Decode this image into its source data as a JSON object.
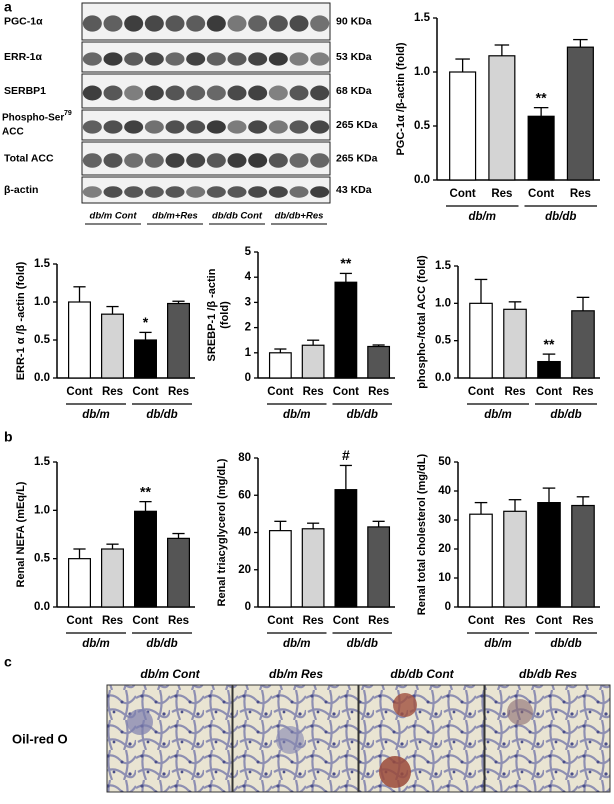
{
  "panels": [
    "a",
    "b",
    "c"
  ],
  "blot": {
    "rows": [
      {
        "label": "PGC-1α",
        "size": "90 KDa"
      },
      {
        "label": "ERR-1α",
        "size": "53 KDa"
      },
      {
        "label": "SERBP1",
        "size": "68 KDa"
      },
      {
        "label": "Phospho-Ser",
        "superscript": "79",
        "label_line2": "ACC",
        "size": "265 KDa"
      },
      {
        "label": "Total ACC",
        "size": "265 KDa"
      },
      {
        "label": "β-actin",
        "size": "43 KDa"
      }
    ],
    "lanes": [
      "db/m Cont",
      "db/m+Res",
      "db/db Cont",
      "db/db+Res"
    ]
  },
  "chart_data": [
    {
      "type": "bar",
      "y_label": "PGC-1α /β-actin (fold)",
      "categories": [
        "Cont",
        "Res",
        "Cont",
        "Res"
      ],
      "groups": [
        "db/m",
        "db/db"
      ],
      "values": [
        1.0,
        1.15,
        0.59,
        1.23
      ],
      "errors": [
        0.12,
        0.1,
        0.08,
        0.07
      ],
      "significance": [
        null,
        null,
        "**",
        null
      ],
      "colors": [
        "#ffffff",
        "#d4d4d4",
        "#000000",
        "#555555"
      ],
      "ylim": [
        0,
        1.5
      ],
      "yticks": [
        {
          "value": 0,
          "label": "0.0"
        },
        0.5,
        {
          "value": 1,
          "label": "1.0"
        },
        1.5
      ]
    },
    {
      "type": "bar",
      "y_label": "ERR-1 α /β -actin (fold)",
      "categories": [
        "Cont",
        "Res",
        "Cont",
        "Res"
      ],
      "groups": [
        "db/m",
        "db/db"
      ],
      "values": [
        1.0,
        0.84,
        0.5,
        0.98
      ],
      "errors": [
        0.2,
        0.1,
        0.1,
        0.03
      ],
      "significance": [
        null,
        null,
        "*",
        null
      ],
      "colors": [
        "#ffffff",
        "#d4d4d4",
        "#000000",
        "#555555"
      ],
      "ylim": [
        0,
        1.5
      ],
      "yticks": [
        {
          "value": 0,
          "label": "0.0"
        },
        0.5,
        {
          "value": 1,
          "label": "1.0"
        },
        1.5
      ]
    },
    {
      "type": "bar",
      "y_label": [
        "SREBP-1 /β -actin",
        "(fold)"
      ],
      "categories": [
        "Cont",
        "Res",
        "Cont",
        "Res"
      ],
      "groups": [
        "db/m",
        "db/db"
      ],
      "values": [
        1.0,
        1.3,
        3.8,
        1.25
      ],
      "errors": [
        0.15,
        0.2,
        0.35,
        0.06
      ],
      "significance": [
        null,
        null,
        "**",
        null
      ],
      "colors": [
        "#ffffff",
        "#d4d4d4",
        "#000000",
        "#555555"
      ],
      "ylim": [
        0,
        5
      ],
      "yticks": [
        0,
        1,
        2,
        3,
        4,
        5
      ]
    },
    {
      "type": "bar",
      "y_label": "phospho-/total ACC (fold)",
      "categories": [
        "Cont",
        "Res",
        "Cont",
        "Res"
      ],
      "groups": [
        "db/m",
        "db/db"
      ],
      "values": [
        1.0,
        0.92,
        0.22,
        0.9
      ],
      "errors": [
        0.32,
        0.1,
        0.1,
        0.18
      ],
      "significance": [
        null,
        null,
        "**",
        null
      ],
      "colors": [
        "#ffffff",
        "#d4d4d4",
        "#000000",
        "#555555"
      ],
      "ylim": [
        0,
        1.5
      ],
      "yticks": [
        {
          "value": 0,
          "label": "0.0"
        },
        0.5,
        {
          "value": 1,
          "label": "1.0"
        },
        1.5
      ]
    },
    {
      "type": "bar",
      "y_label": "Renal NEFA (mEq/L)",
      "categories": [
        "Cont",
        "Res",
        "Cont",
        "Res"
      ],
      "groups": [
        "db/m",
        "db/db"
      ],
      "values": [
        0.5,
        0.6,
        0.99,
        0.71
      ],
      "errors": [
        0.1,
        0.05,
        0.1,
        0.05
      ],
      "significance": [
        null,
        null,
        "**",
        null
      ],
      "colors": [
        "#ffffff",
        "#d4d4d4",
        "#000000",
        "#555555"
      ],
      "ylim": [
        0,
        1.5
      ],
      "yticks": [
        {
          "value": 0,
          "label": "0.0"
        },
        0.5,
        {
          "value": 1,
          "label": "1.0"
        },
        1.5
      ]
    },
    {
      "type": "bar",
      "y_label": "Renal triacyglycerol (mg/dL)",
      "categories": [
        "Cont",
        "Res",
        "Cont",
        "Res"
      ],
      "groups": [
        "db/m",
        "db/db"
      ],
      "values": [
        41,
        42,
        63,
        43
      ],
      "errors": [
        5,
        3,
        13,
        3
      ],
      "significance": [
        null,
        null,
        "#",
        null
      ],
      "colors": [
        "#ffffff",
        "#d4d4d4",
        "#000000",
        "#555555"
      ],
      "ylim": [
        0,
        80
      ],
      "yticks": [
        0,
        20,
        40,
        60,
        80
      ]
    },
    {
      "type": "bar",
      "y_label": "Renal  total cholesterol (mg/dL)",
      "categories": [
        "Cont",
        "Res",
        "Cont",
        "Res"
      ],
      "groups": [
        "db/m",
        "db/db"
      ],
      "values": [
        32,
        33,
        36,
        35
      ],
      "errors": [
        4,
        4,
        5,
        3
      ],
      "significance": [
        null,
        null,
        null,
        null
      ],
      "colors": [
        "#ffffff",
        "#d4d4d4",
        "#000000",
        "#555555"
      ],
      "ylim": [
        0,
        50
      ],
      "yticks": [
        0,
        10,
        20,
        30,
        40,
        50
      ]
    }
  ],
  "histology": {
    "label": "Oil-red O",
    "images": [
      "db/m Cont",
      "db/m Res",
      "db/db Cont",
      "db/db Res"
    ]
  }
}
